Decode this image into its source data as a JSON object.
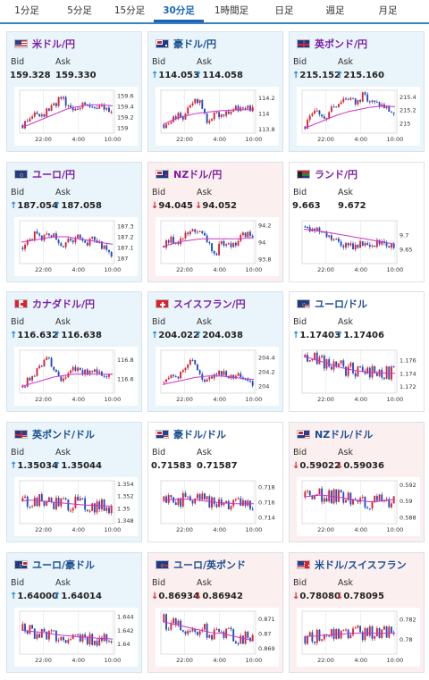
{
  "tabs": [
    {
      "label": "1分足",
      "active": false
    },
    {
      "label": "5分足",
      "active": false
    },
    {
      "label": "15分足",
      "active": false
    },
    {
      "label": "30分足",
      "active": true
    },
    {
      "label": "1時間足",
      "active": false
    },
    {
      "label": "日足",
      "active": false
    },
    {
      "label": "週足",
      "active": false
    },
    {
      "label": "月足",
      "active": false
    }
  ],
  "labels": {
    "bid": "Bid",
    "ask": "Ask"
  },
  "colors": {
    "candle_up": "#d9232f",
    "candle_down": "#1f4fbf",
    "ma_line": "#cc33cc",
    "up_bg": "#e9f4fb",
    "down_bg": "#fcefef"
  },
  "x_ticks": [
    "22:00",
    "4:00",
    "10:00"
  ],
  "cards": [
    {
      "pair": "米ドル/円",
      "flag": "us",
      "trend": "up",
      "name_color": "purple",
      "bid": "159.328",
      "ask": "159.330",
      "bid_dir": "none",
      "ask_dir": "none",
      "y_ticks": [
        "159.6",
        "159.4",
        "159.2",
        "159"
      ],
      "chart_data": {
        "type": "candlestick",
        "ylim": [
          158.9,
          159.7
        ],
        "ma": [
          159.02,
          159.05,
          159.1,
          159.15,
          159.2,
          159.25,
          159.3,
          159.35,
          159.38,
          159.4,
          159.42,
          159.43,
          159.43,
          159.42,
          159.41
        ],
        "closes": [
          159.05,
          159.15,
          159.28,
          159.2,
          159.35,
          159.4,
          159.62,
          159.45,
          159.38,
          159.42,
          159.45,
          159.4,
          159.43,
          159.36,
          159.33
        ]
      }
    },
    {
      "pair": "豪ドル/円",
      "flag": "au",
      "trend": "up",
      "name_color": "blue",
      "bid": "114.053",
      "ask": "114.058",
      "bid_dir": "up",
      "ask_dir": "up",
      "y_ticks": [
        "114.2",
        "114",
        "113.8"
      ],
      "chart_data": {
        "type": "candlestick",
        "ylim": [
          113.75,
          114.3
        ],
        "ma": [
          113.85,
          113.9,
          113.93,
          113.96,
          113.98,
          114.0,
          114.01,
          114.02,
          114.03,
          114.04,
          114.04,
          114.05,
          114.05,
          114.05,
          114.05
        ],
        "closes": [
          113.85,
          113.92,
          113.98,
          113.95,
          114.05,
          114.2,
          114.1,
          113.88,
          114.05,
          113.98,
          114.0,
          114.04,
          114.08,
          114.06,
          114.05
        ]
      }
    },
    {
      "pair": "英ポンド/円",
      "flag": "gb",
      "trend": "up",
      "name_color": "purple",
      "bid": "215.152",
      "ask": "215.160",
      "bid_dir": "up",
      "ask_dir": "up",
      "y_ticks": [
        "215.4",
        "215.2",
        "215"
      ],
      "chart_data": {
        "type": "candlestick",
        "ylim": [
          214.85,
          215.5
        ],
        "ma": [
          214.92,
          214.96,
          215.0,
          215.04,
          215.08,
          215.12,
          215.15,
          215.18,
          215.2,
          215.22,
          215.24,
          215.25,
          215.26,
          215.26,
          215.25
        ],
        "closes": [
          214.95,
          215.1,
          215.2,
          215.05,
          215.25,
          215.3,
          215.38,
          215.4,
          215.3,
          215.42,
          215.35,
          215.3,
          215.28,
          215.22,
          215.15
        ]
      }
    },
    {
      "pair": "ユーロ/円",
      "flag": "eu",
      "trend": "up",
      "name_color": "purple",
      "bid": "187.054",
      "ask": "187.058",
      "bid_dir": "up",
      "ask_dir": "up",
      "y_ticks": [
        "187.3",
        "187.2",
        "187.1",
        "187"
      ],
      "chart_data": {
        "type": "candlestick",
        "ylim": [
          186.95,
          187.35
        ],
        "ma": [
          187.15,
          187.16,
          187.17,
          187.18,
          187.19,
          187.2,
          187.2,
          187.2,
          187.19,
          187.18,
          187.17,
          187.16,
          187.15,
          187.14,
          187.13
        ],
        "closes": [
          187.1,
          187.18,
          187.22,
          187.2,
          187.25,
          187.22,
          187.1,
          187.18,
          187.15,
          187.2,
          187.12,
          187.18,
          187.15,
          187.08,
          187.05
        ]
      }
    },
    {
      "pair": "NZドル/円",
      "flag": "nz",
      "trend": "down",
      "name_color": "purple",
      "bid": "94.045",
      "ask": "94.052",
      "bid_dir": "down",
      "ask_dir": "down",
      "y_ticks": [
        "94.2",
        "94",
        "93.8"
      ],
      "chart_data": {
        "type": "candlestick",
        "ylim": [
          93.75,
          94.25
        ],
        "ma": [
          93.95,
          93.97,
          93.99,
          94.01,
          94.02,
          94.03,
          94.04,
          94.04,
          94.04,
          94.04,
          94.04,
          94.04,
          94.04,
          94.05,
          94.05
        ],
        "closes": [
          93.95,
          94.02,
          94.0,
          94.05,
          94.1,
          94.15,
          94.08,
          94.0,
          93.85,
          93.98,
          94.02,
          93.95,
          94.05,
          94.1,
          94.05
        ]
      }
    },
    {
      "pair": "ランド/円",
      "flag": "za",
      "trend": "flat",
      "name_color": "purple",
      "bid": "9.663",
      "ask": "9.672",
      "bid_dir": "none",
      "ask_dir": "none",
      "y_ticks": [
        "9.7",
        "9.65"
      ],
      "chart_data": {
        "type": "candlestick",
        "ylim": [
          9.6,
          9.75
        ],
        "ma": [
          9.72,
          9.718,
          9.715,
          9.712,
          9.708,
          9.704,
          9.7,
          9.696,
          9.692,
          9.688,
          9.684,
          9.68,
          9.676,
          9.672,
          9.668
        ],
        "closes": [
          9.73,
          9.72,
          9.715,
          9.7,
          9.69,
          9.68,
          9.67,
          9.665,
          9.66,
          9.67,
          9.665,
          9.67,
          9.668,
          9.665,
          9.663
        ]
      }
    },
    {
      "pair": "カナダドル/円",
      "flag": "ca",
      "trend": "up",
      "name_color": "purple",
      "bid": "116.632",
      "ask": "116.638",
      "bid_dir": "up",
      "ask_dir": "up",
      "y_ticks": [
        "116.8",
        "116.6"
      ],
      "chart_data": {
        "type": "candlestick",
        "ylim": [
          116.45,
          116.9
        ],
        "ma": [
          116.52,
          116.54,
          116.56,
          116.58,
          116.6,
          116.62,
          116.63,
          116.64,
          116.65,
          116.65,
          116.65,
          116.65,
          116.65,
          116.65,
          116.65
        ],
        "closes": [
          116.52,
          116.6,
          116.65,
          116.75,
          116.8,
          116.7,
          116.6,
          116.62,
          116.7,
          116.68,
          116.66,
          116.7,
          116.64,
          116.62,
          116.63
        ]
      }
    },
    {
      "pair": "スイスフラン/円",
      "flag": "ch",
      "trend": "up",
      "name_color": "purple",
      "bid": "204.022",
      "ask": "204.038",
      "bid_dir": "up",
      "ask_dir": "up",
      "y_ticks": [
        "204.4",
        "204.2",
        "204"
      ],
      "chart_data": {
        "type": "candlestick",
        "ylim": [
          203.9,
          204.5
        ],
        "ma": [
          204.02,
          204.04,
          204.06,
          204.08,
          204.1,
          204.12,
          204.13,
          204.14,
          204.14,
          204.14,
          204.13,
          204.12,
          204.11,
          204.1,
          204.09
        ],
        "closes": [
          204.05,
          204.12,
          204.1,
          204.2,
          204.38,
          204.25,
          204.1,
          204.08,
          204.12,
          204.2,
          204.15,
          204.12,
          204.18,
          204.05,
          204.02
        ]
      }
    },
    {
      "pair": "ユーロ/ドル",
      "flag": "eu-us",
      "trend": "flat",
      "name_color": "blue",
      "bid": "1.17403",
      "ask": "1.17406",
      "bid_dir": "up",
      "ask_dir": "up",
      "y_ticks": [
        "1.176",
        "1.174",
        "1.172"
      ],
      "chart_data": {
        "type": "candlestick",
        "ylim": [
          1.171,
          1.1775
        ],
        "ma": [
          1.1765,
          1.1763,
          1.176,
          1.1757,
          1.1754,
          1.1751,
          1.1748,
          1.1746,
          1.1744,
          1.1743,
          1.1742,
          1.1741,
          1.1741,
          1.174,
          1.174
        ]
      }
    },
    {
      "pair": "英ポンド/ドル",
      "flag": "gb-us",
      "trend": "up",
      "name_color": "blue",
      "bid": "1.35034",
      "ask": "1.35044",
      "bid_dir": "up",
      "ask_dir": "up",
      "y_ticks": [
        "1.354",
        "1.352",
        "1.35",
        "1.348"
      ],
      "chart_data": {
        "type": "candlestick",
        "ylim": [
          1.3475,
          1.3545
        ],
        "ma": [
          1.3512,
          1.3513,
          1.3513,
          1.3512,
          1.3511,
          1.351,
          1.3509,
          1.3508,
          1.3507,
          1.3506,
          1.3505,
          1.3505,
          1.3504,
          1.3504,
          1.3503
        ]
      }
    },
    {
      "pair": "豪ドル/ドル",
      "flag": "au-us",
      "trend": "flat",
      "name_color": "blue",
      "bid": "0.71583",
      "ask": "0.71587",
      "bid_dir": "none",
      "ask_dir": "none",
      "y_ticks": [
        "0.718",
        "0.716",
        "0.714"
      ],
      "chart_data": {
        "type": "candlestick",
        "ylim": [
          0.7132,
          0.7188
        ],
        "ma": [
          0.7162,
          0.7163,
          0.7164,
          0.7164,
          0.7164,
          0.7163,
          0.7162,
          0.7161,
          0.716,
          0.7159,
          0.7159,
          0.7158,
          0.7158,
          0.7158,
          0.7158
        ]
      }
    },
    {
      "pair": "NZドル/ドル",
      "flag": "nz-us",
      "trend": "down",
      "name_color": "blue",
      "bid": "0.59022",
      "ask": "0.59036",
      "bid_dir": "down",
      "ask_dir": "down",
      "y_ticks": [
        "0.592",
        "0.59",
        "0.588"
      ],
      "chart_data": {
        "type": "candlestick",
        "ylim": [
          0.5872,
          0.5925
        ],
        "ma": [
          0.5905,
          0.5906,
          0.5907,
          0.5907,
          0.5906,
          0.5905,
          0.5904,
          0.5902,
          0.5901,
          0.59,
          0.5899,
          0.5899,
          0.59,
          0.5901,
          0.5902
        ]
      }
    },
    {
      "pair": "ユーロ/豪ドル",
      "flag": "eu-au",
      "trend": "up",
      "name_color": "blue",
      "bid": "1.64000",
      "ask": "1.64014",
      "bid_dir": "up",
      "ask_dir": "up",
      "y_ticks": [
        "1.644",
        "1.642",
        "1.64"
      ],
      "chart_data": {
        "type": "candlestick",
        "ylim": [
          1.6385,
          1.6448
        ],
        "ma": [
          1.642,
          1.6419,
          1.6418,
          1.6417,
          1.6416,
          1.6414,
          1.6413,
          1.6412,
          1.6411,
          1.641,
          1.641,
          1.6409,
          1.6408,
          1.6408,
          1.6407
        ]
      }
    },
    {
      "pair": "ユーロ/英ポンド",
      "flag": "eu-gb",
      "trend": "down",
      "name_color": "blue",
      "bid": "0.86934",
      "ask": "0.86942",
      "bid_dir": "down",
      "ask_dir": "down",
      "y_ticks": [
        "0.871",
        "0.87",
        "0.869"
      ],
      "chart_data": {
        "type": "candlestick",
        "ylim": [
          0.8686,
          0.8715
        ],
        "ma": [
          0.8708,
          0.8707,
          0.8706,
          0.8705,
          0.8704,
          0.8703,
          0.8702,
          0.8701,
          0.87,
          0.87,
          0.8699,
          0.8698,
          0.8697,
          0.8696,
          0.8695
        ]
      }
    },
    {
      "pair": "米ドル/スイスフラン",
      "flag": "us-ch",
      "trend": "down",
      "name_color": "blue",
      "bid": "0.78080",
      "ask": "0.78095",
      "bid_dir": "down",
      "ask_dir": "down",
      "y_ticks": [
        "0.782",
        "0.78"
      ],
      "chart_data": {
        "type": "candlestick",
        "ylim": [
          0.7785,
          0.7828
        ],
        "ma": [
          0.7802,
          0.7803,
          0.7803,
          0.7804,
          0.7804,
          0.7805,
          0.7805,
          0.7806,
          0.7806,
          0.7806,
          0.7806,
          0.7806,
          0.7806,
          0.7806,
          0.7806
        ]
      }
    }
  ]
}
